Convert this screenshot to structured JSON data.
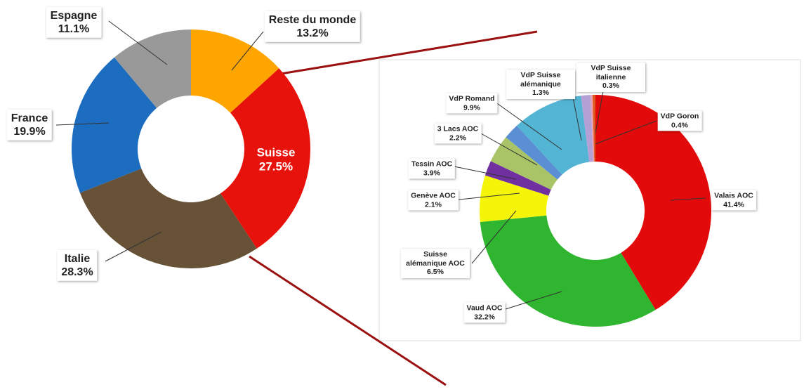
{
  "chart_data": [
    {
      "type": "donut",
      "categories": [
        "Reste du monde",
        "Suisse",
        "Italie",
        "France",
        "Espagne"
      ],
      "values": [
        13.2,
        27.5,
        28.3,
        19.9,
        11.1
      ],
      "value_labels": [
        "13.2%",
        "27.5%",
        "28.3%",
        "19.9%",
        "11.1%"
      ],
      "colors": [
        "#ffa500",
        "#e8120c",
        "#675238",
        "#1c6cc0",
        "#999999"
      ]
    },
    {
      "type": "donut",
      "categories": [
        "Valais AOC",
        "Vaud AOC",
        "Suisse alémanique AOC",
        "Genève AOC",
        "Tessin AOC",
        "3 Lacs AOC",
        "VdP Romand",
        "VdP Suisse alémanique",
        "VdP Suisse italienne",
        "VdP Goron"
      ],
      "values": [
        41.4,
        32.2,
        6.5,
        2.1,
        3.9,
        2.2,
        9.9,
        1.3,
        0.3,
        0.4
      ],
      "value_labels": [
        "41.4%",
        "32.2%",
        "6.5%",
        "2.1%",
        "3.9%",
        "2.2%",
        "9.9%",
        "1.3%",
        "0.3%",
        "0.4%"
      ],
      "colors": [
        "#e20a0a",
        "#2fb52f",
        "#f5f50a",
        "#7030a0",
        "#a9c466",
        "#5b8fd4",
        "#54b4d4",
        "#b4a0d4",
        "#e8a0b4",
        "#e05a1e"
      ]
    }
  ]
}
